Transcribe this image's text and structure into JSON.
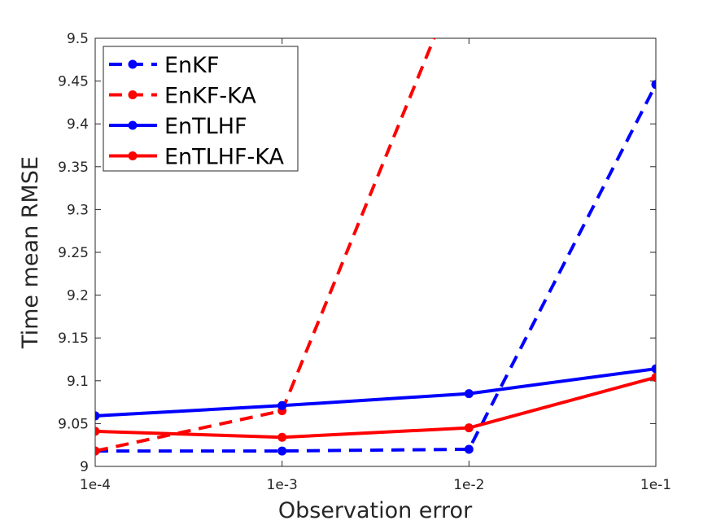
{
  "chart_data": {
    "type": "line",
    "categories": [
      "1e-4",
      "1e-3",
      "1e-2",
      "1e-1"
    ],
    "xlabel": "Observation error",
    "ylabel": "Time mean RMSE",
    "ylim": [
      9,
      9.5
    ],
    "yticks": [
      "9",
      "9.05",
      "9.1",
      "9.15",
      "9.2",
      "9.25",
      "9.3",
      "9.35",
      "9.4",
      "9.45",
      "9.5"
    ],
    "grid": false,
    "legend_position": "top-left",
    "series": [
      {
        "name": "EnKF",
        "values": [
          9.018,
          9.018,
          9.02,
          9.446
        ],
        "color": "#0000FF",
        "style": "dashed"
      },
      {
        "name": "EnKF-KA",
        "values": [
          9.018,
          9.065,
          9.6,
          null
        ],
        "color": "#FF0000",
        "style": "dashed"
      },
      {
        "name": "EnTLHF",
        "values": [
          9.059,
          9.071,
          9.085,
          9.114
        ],
        "color": "#0000FF",
        "style": "solid"
      },
      {
        "name": "EnTLHF-KA",
        "values": [
          9.041,
          9.034,
          9.045,
          9.104
        ],
        "color": "#FF0000",
        "style": "solid"
      }
    ]
  }
}
